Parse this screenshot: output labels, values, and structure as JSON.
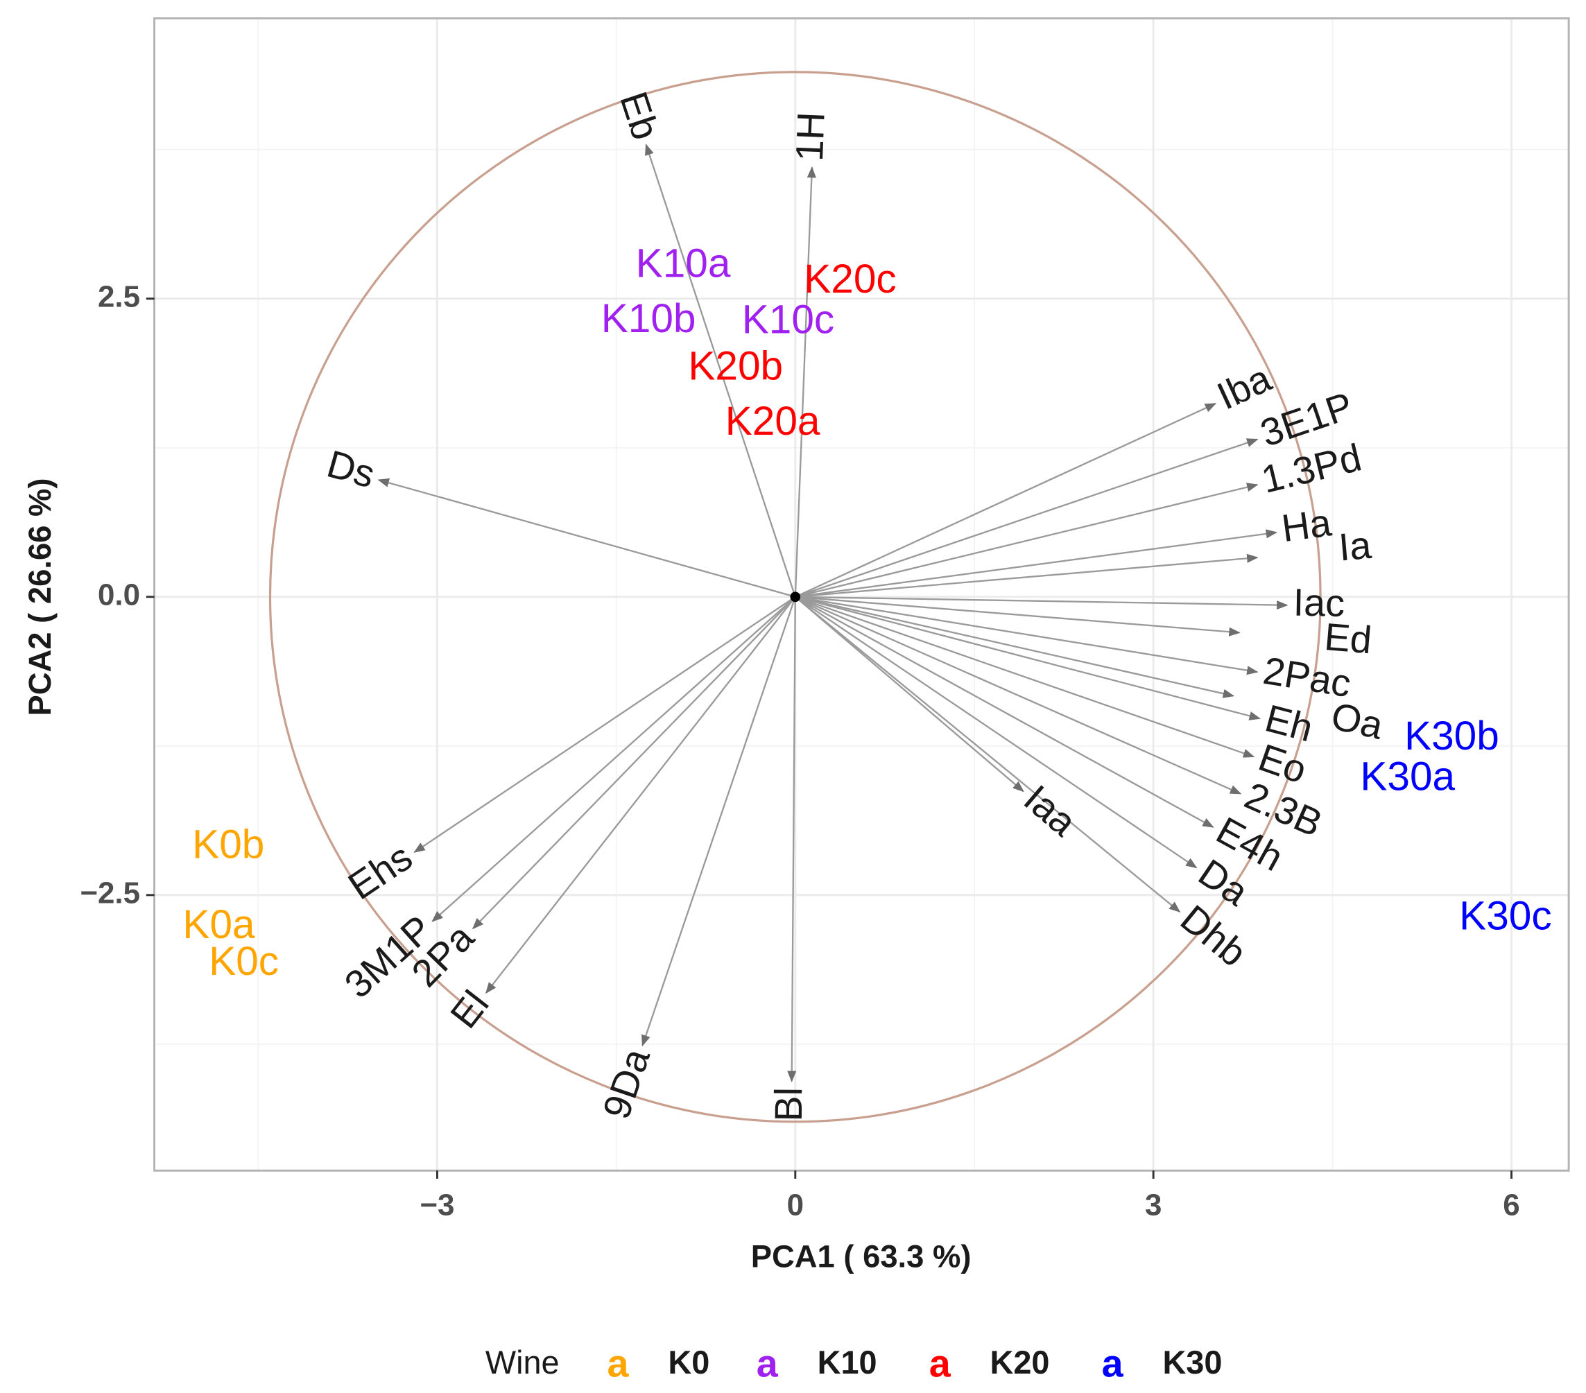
{
  "chart_data": {
    "type": "scatter",
    "subtype": "pca-biplot",
    "title": "",
    "xlabel": "PCA1 ( 63.3 %)",
    "ylabel": "PCA2 ( 26.66 %)",
    "xlim": [
      -5.37,
      6.48
    ],
    "ylim": [
      -4.81,
      4.85
    ],
    "x_ticks": [
      {
        "value": -3,
        "label": "−3"
      },
      {
        "value": 0,
        "label": "0"
      },
      {
        "value": 3,
        "label": "3"
      },
      {
        "value": 6,
        "label": "6"
      }
    ],
    "y_ticks": [
      {
        "value": 2.5,
        "label": "2.5"
      },
      {
        "value": 0,
        "label": "0.0"
      },
      {
        "value": -2.5,
        "label": "−2.5"
      }
    ],
    "x_minor_grid": [
      -4.5,
      -1.5,
      1.5,
      4.5
    ],
    "y_minor_grid": [
      3.75,
      1.25,
      -1.25,
      -3.75
    ],
    "grid": true,
    "correlation_circle_radius": 4.4,
    "colors": {
      "circle": "#c9a08f",
      "arrow": "#9a9a9a",
      "grid": "#ebebeb",
      "panel_border": "#b3b3b3"
    },
    "variables": [
      {
        "name": "Eb",
        "x": -1.25,
        "y": 3.79
      },
      {
        "name": "1H",
        "x": 0.14,
        "y": 3.6
      },
      {
        "name": "Ds",
        "x": -3.49,
        "y": 0.98
      },
      {
        "name": "Iba",
        "x": 3.52,
        "y": 1.62
      },
      {
        "name": "3E1P",
        "x": 3.87,
        "y": 1.32
      },
      {
        "name": "1.3Pd",
        "x": 3.87,
        "y": 0.94
      },
      {
        "name": "Ha",
        "x": 4.03,
        "y": 0.54
      },
      {
        "name": "Ia",
        "x": 3.87,
        "y": 0.33
      },
      {
        "name": "Iac",
        "x": 4.12,
        "y": -0.07
      },
      {
        "name": "Ed",
        "x": 3.72,
        "y": -0.3
      },
      {
        "name": "2Pac",
        "x": 3.87,
        "y": -0.63
      },
      {
        "name": "Oa",
        "x": 3.67,
        "y": -0.83
      },
      {
        "name": "Eh",
        "x": 3.89,
        "y": -1.02
      },
      {
        "name": "Eo",
        "x": 3.84,
        "y": -1.34
      },
      {
        "name": "2.3B",
        "x": 3.73,
        "y": -1.65
      },
      {
        "name": "E4h",
        "x": 3.5,
        "y": -1.93
      },
      {
        "name": "Da",
        "x": 3.36,
        "y": -2.27
      },
      {
        "name": "Dhb",
        "x": 3.22,
        "y": -2.64
      },
      {
        "name": "Iaa",
        "x": 1.91,
        "y": -1.63
      },
      {
        "name": "Ehs",
        "x": -3.19,
        "y": -2.14
      },
      {
        "name": "3M1P",
        "x": -3.04,
        "y": -2.72
      },
      {
        "name": "2Pa",
        "x": -2.7,
        "y": -2.78
      },
      {
        "name": "El",
        "x": -2.59,
        "y": -3.32
      },
      {
        "name": "9Da",
        "x": -1.28,
        "y": -3.76
      },
      {
        "name": "Bl",
        "x": -0.03,
        "y": -4.06
      }
    ],
    "individuals": [
      {
        "name": "K0b",
        "group": "K0",
        "x": -4.75,
        "y": -2.1
      },
      {
        "name": "K0a",
        "group": "K0",
        "x": -4.83,
        "y": -2.77
      },
      {
        "name": "K0c",
        "group": "K0",
        "x": -4.62,
        "y": -3.08
      },
      {
        "name": "K10a",
        "group": "K10",
        "x": -0.94,
        "y": 2.77
      },
      {
        "name": "K10b",
        "group": "K10",
        "x": -1.23,
        "y": 2.31
      },
      {
        "name": "K10c",
        "group": "K10",
        "x": -0.06,
        "y": 2.3
      },
      {
        "name": "K20c",
        "group": "K20",
        "x": 0.46,
        "y": 2.64
      },
      {
        "name": "K20b",
        "group": "K20",
        "x": -0.5,
        "y": 1.91
      },
      {
        "name": "K20a",
        "group": "K20",
        "x": -0.19,
        "y": 1.45
      },
      {
        "name": "K30b",
        "group": "K30",
        "x": 5.5,
        "y": -1.19
      },
      {
        "name": "K30a",
        "group": "K30",
        "x": 5.13,
        "y": -1.53
      },
      {
        "name": "K30c",
        "group": "K30",
        "x": 5.95,
        "y": -2.7
      }
    ],
    "legend": {
      "title": "Wine",
      "position": "bottom",
      "key_glyph": "a",
      "entries": [
        {
          "label": "K0",
          "color": "#FFA500"
        },
        {
          "label": "K10",
          "color": "#A020F0"
        },
        {
          "label": "K20",
          "color": "#FF0000"
        },
        {
          "label": "K30",
          "color": "#0000FF"
        }
      ]
    }
  }
}
